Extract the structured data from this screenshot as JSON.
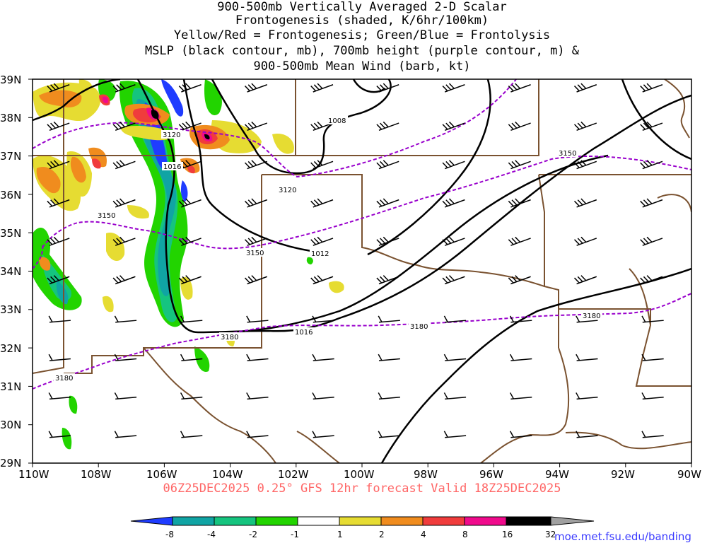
{
  "title_lines": [
    "900-500mb Vertically Averaged 2-D Scalar",
    "Frontogenesis (shaded, K/6hr/100km)",
    "Yellow/Red = Frontogenesis;  Green/Blue = Frontolysis",
    "MSLP (black contour, mb), 700mb height (purple contour, m) &",
    "900-500mb Mean Wind (barb, kt)"
  ],
  "valid_text": "06Z25DEC2025 0.25° GFS 12hr forecast Valid 18Z25DEC2025",
  "credit": "moe.met.fsu.edu/banding",
  "map": {
    "lon_range": [
      -110,
      -90
    ],
    "lat_range": [
      29,
      39
    ],
    "lat_ticks": [
      "39N",
      "38N",
      "37N",
      "36N",
      "35N",
      "34N",
      "33N",
      "32N",
      "31N",
      "30N",
      "29N"
    ],
    "lon_ticks": [
      "110W",
      "108W",
      "106W",
      "104W",
      "102W",
      "100W",
      "98W",
      "96W",
      "94W",
      "92W",
      "90W"
    ],
    "border_color": "#7a5230",
    "mslp_color": "#000000",
    "height_color": "#9900cc",
    "mslp_labels": [
      "1008",
      "1016",
      "1012",
      "1016"
    ],
    "height_labels": [
      "3120",
      "3120",
      "3150",
      "3150",
      "3150",
      "3180",
      "3180",
      "3180",
      "3180"
    ]
  },
  "colorbar": {
    "labels": [
      "-8",
      "-4",
      "-2",
      "-1",
      "1",
      "2",
      "4",
      "8",
      "16",
      "32"
    ],
    "colors": [
      "#1f3cff",
      "#10a4a4",
      "#15c47f",
      "#22d400",
      "#ffffff",
      "#e6dc32",
      "#f08c1e",
      "#f03c3c",
      "#f00a8c",
      "#000000",
      "#a0a0a0"
    ]
  }
}
